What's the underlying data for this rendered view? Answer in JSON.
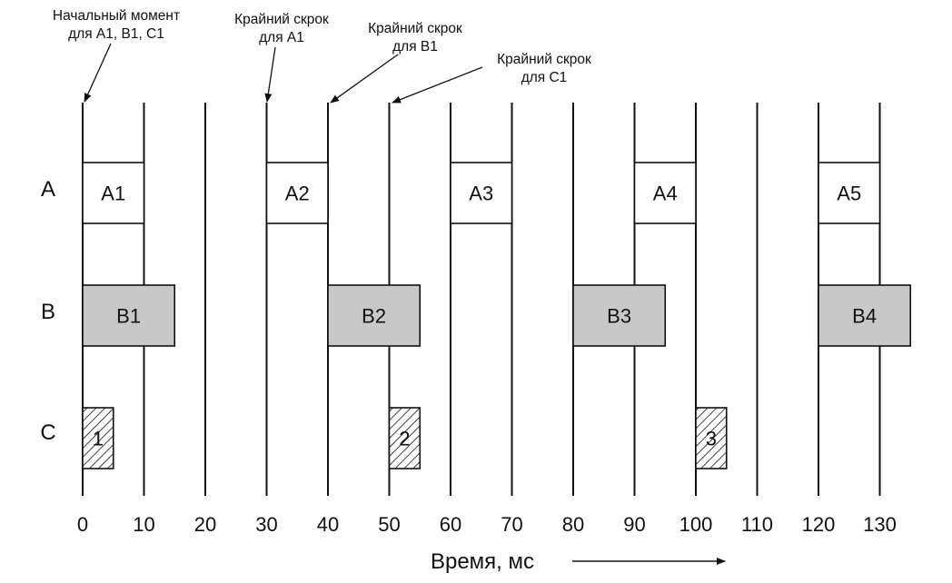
{
  "annotations": [
    {
      "key": "start",
      "lines": [
        "Начальный момент",
        "для A1, B1, C1"
      ]
    },
    {
      "key": "deadline_a1",
      "lines": [
        "Крайний скрок",
        "для A1"
      ]
    },
    {
      "key": "deadline_b1",
      "lines": [
        "Крайний скрок",
        "для B1"
      ]
    },
    {
      "key": "deadline_c1",
      "lines": [
        "Крайний скрок",
        "для C1"
      ]
    }
  ],
  "rows": [
    {
      "key": "A",
      "label": "A"
    },
    {
      "key": "B",
      "label": "B"
    },
    {
      "key": "C",
      "label": "C"
    }
  ],
  "ticks": [
    0,
    10,
    20,
    30,
    40,
    50,
    60,
    70,
    80,
    90,
    100,
    110,
    120,
    130
  ],
  "gridlines": [
    0,
    10,
    20,
    30,
    40,
    50,
    60,
    70,
    80,
    90,
    100,
    110,
    120,
    130
  ],
  "axis": {
    "label": "Время, мс"
  },
  "blocks": [
    {
      "row": "A",
      "label": "A1",
      "start": 0,
      "end": 10,
      "fill": "#ffffff"
    },
    {
      "row": "A",
      "label": "A2",
      "start": 30,
      "end": 40,
      "fill": "#ffffff"
    },
    {
      "row": "A",
      "label": "A3",
      "start": 60,
      "end": 70,
      "fill": "#ffffff"
    },
    {
      "row": "A",
      "label": "A4",
      "start": 90,
      "end": 100,
      "fill": "#ffffff"
    },
    {
      "row": "A",
      "label": "A5",
      "start": 120,
      "end": 130,
      "fill": "#ffffff"
    },
    {
      "row": "B",
      "label": "B1",
      "start": 0,
      "end": 15,
      "fill": "#c8c8c8"
    },
    {
      "row": "B",
      "label": "B2",
      "start": 40,
      "end": 55,
      "fill": "#c8c8c8"
    },
    {
      "row": "B",
      "label": "B3",
      "start": 80,
      "end": 95,
      "fill": "#c8c8c8"
    },
    {
      "row": "B",
      "label": "B4",
      "start": 120,
      "end": 135,
      "fill": "#c8c8c8"
    },
    {
      "row": "C",
      "label": "1",
      "start": 0,
      "end": 5,
      "fill": "hatch"
    },
    {
      "row": "C",
      "label": "2",
      "start": 50,
      "end": 55,
      "fill": "hatch"
    },
    {
      "row": "C",
      "label": "3",
      "start": 100,
      "end": 105,
      "fill": "hatch"
    }
  ]
}
